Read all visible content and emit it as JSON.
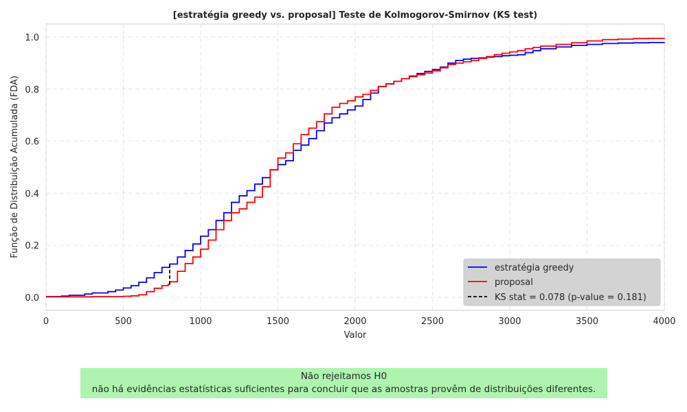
{
  "chart_data": {
    "type": "line",
    "title": "[estratégia greedy vs. proposal] Teste de Kolmogorov-Smirnov (KS test)",
    "xlabel": "Valor",
    "ylabel": "Função de Distribuição Acumulada (FDA)",
    "xlim": [
      0,
      4000
    ],
    "ylim": [
      -0.05,
      1.05
    ],
    "x_ticks": [
      0,
      500,
      1000,
      1500,
      2000,
      2500,
      3000,
      3500,
      4000
    ],
    "y_ticks": [
      0.0,
      0.2,
      0.4,
      0.6,
      0.8,
      1.0
    ],
    "x_tick_labels": [
      "0",
      "500",
      "1000",
      "1500",
      "2000",
      "2500",
      "3000",
      "3500",
      "4000"
    ],
    "y_tick_labels": [
      "0.0",
      "0.2",
      "0.4",
      "0.6",
      "0.8",
      "1.0"
    ],
    "grid": true,
    "legend_position": "bottom-right",
    "series": [
      {
        "name": "estratégia greedy",
        "color": "#0000ff",
        "x": [
          0,
          100,
          150,
          250,
          300,
          400,
          450,
          500,
          550,
          600,
          650,
          700,
          750,
          800,
          850,
          900,
          950,
          1000,
          1050,
          1100,
          1150,
          1200,
          1250,
          1300,
          1350,
          1400,
          1450,
          1500,
          1550,
          1600,
          1650,
          1700,
          1750,
          1800,
          1850,
          1900,
          1950,
          2000,
          2050,
          2100,
          2150,
          2200,
          2250,
          2300,
          2350,
          2400,
          2450,
          2500,
          2550,
          2600,
          2650,
          2700,
          2750,
          2800,
          2850,
          2900,
          2950,
          3000,
          3050,
          3100,
          3150,
          3200,
          3300,
          3400,
          3500,
          3600,
          3700,
          3800,
          3900,
          4000
        ],
        "y": [
          0.003,
          0.005,
          0.008,
          0.013,
          0.017,
          0.022,
          0.028,
          0.036,
          0.045,
          0.058,
          0.075,
          0.095,
          0.115,
          0.128,
          0.155,
          0.18,
          0.205,
          0.235,
          0.26,
          0.295,
          0.325,
          0.365,
          0.39,
          0.41,
          0.435,
          0.46,
          0.49,
          0.51,
          0.525,
          0.565,
          0.585,
          0.61,
          0.64,
          0.67,
          0.69,
          0.705,
          0.72,
          0.735,
          0.76,
          0.785,
          0.81,
          0.82,
          0.83,
          0.84,
          0.85,
          0.86,
          0.868,
          0.875,
          0.885,
          0.9,
          0.91,
          0.915,
          0.918,
          0.92,
          0.923,
          0.925,
          0.928,
          0.93,
          0.932,
          0.94,
          0.948,
          0.955,
          0.962,
          0.968,
          0.972,
          0.975,
          0.977,
          0.978,
          0.979,
          0.98
        ]
      },
      {
        "name": "proposal",
        "color": "#ff0000",
        "x": [
          0,
          100,
          200,
          300,
          400,
          500,
          550,
          600,
          650,
          700,
          750,
          790,
          800,
          850,
          900,
          950,
          1000,
          1050,
          1100,
          1150,
          1200,
          1250,
          1300,
          1350,
          1400,
          1450,
          1500,
          1550,
          1600,
          1650,
          1700,
          1750,
          1800,
          1850,
          1900,
          1950,
          2000,
          2050,
          2100,
          2150,
          2200,
          2250,
          2300,
          2350,
          2400,
          2450,
          2500,
          2550,
          2600,
          2650,
          2700,
          2750,
          2800,
          2850,
          2900,
          2950,
          3000,
          3050,
          3100,
          3150,
          3200,
          3300,
          3400,
          3500,
          3600,
          3700,
          3800,
          3900,
          4000
        ],
        "y": [
          0.002,
          0.002,
          0.002,
          0.003,
          0.003,
          0.004,
          0.006,
          0.01,
          0.022,
          0.035,
          0.045,
          0.05,
          0.06,
          0.1,
          0.13,
          0.155,
          0.185,
          0.22,
          0.26,
          0.295,
          0.325,
          0.34,
          0.365,
          0.385,
          0.425,
          0.49,
          0.535,
          0.555,
          0.59,
          0.625,
          0.65,
          0.675,
          0.705,
          0.73,
          0.745,
          0.755,
          0.77,
          0.78,
          0.795,
          0.81,
          0.82,
          0.83,
          0.84,
          0.848,
          0.855,
          0.862,
          0.87,
          0.882,
          0.895,
          0.9,
          0.905,
          0.91,
          0.918,
          0.925,
          0.932,
          0.938,
          0.943,
          0.948,
          0.955,
          0.96,
          0.965,
          0.972,
          0.978,
          0.985,
          0.99,
          0.992,
          0.994,
          0.995,
          0.996
        ]
      }
    ],
    "ks_line": {
      "name": "KS stat = 0.078 (p-value = 0.181)",
      "color": "#000000",
      "x": 800,
      "y_start": 0.05,
      "y_end": 0.128
    }
  },
  "conclusion": {
    "line1": "Não rejeitamos H0",
    "line2": "não há evidências estatísticas suficientes para concluir que as amostras provêm de distribuições diferentes.",
    "background": "#adf5ae"
  }
}
